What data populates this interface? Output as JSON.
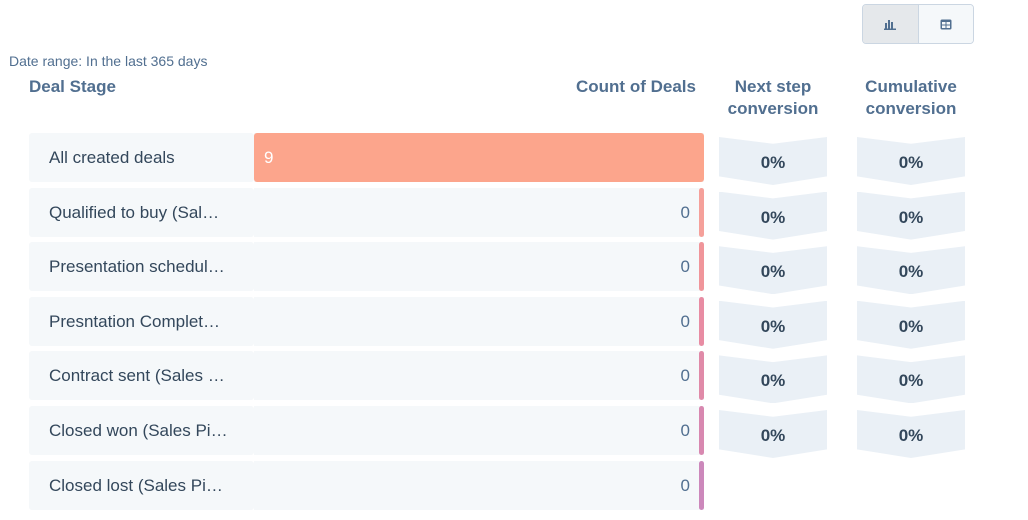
{
  "view_toggle": {
    "chart_icon": "bar-chart-icon",
    "table_icon": "table-icon",
    "active": "chart"
  },
  "date_range": "Date range: In the last 365 days",
  "headers": {
    "stage": "Deal Stage",
    "count": "Count of Deals",
    "next": "Next step conversion",
    "next_l1": "Next step",
    "next_l2": "conversion",
    "cum_l1": "Cumulative",
    "cum_l2": "conversion"
  },
  "rows": [
    {
      "label": "All created deals",
      "count": "9",
      "value": 9,
      "color": "#fca58c",
      "next": "0%",
      "cum": "0%"
    },
    {
      "label": "Qualified to buy (Sal…",
      "count": "0",
      "value": 0,
      "color": "#f5a09a",
      "next": "0%",
      "cum": "0%"
    },
    {
      "label": "Presentation schedul…",
      "count": "0",
      "value": 0,
      "color": "#f0959a",
      "next": "0%",
      "cum": "0%"
    },
    {
      "label": "Presntation Complet…",
      "count": "0",
      "value": 0,
      "color": "#e88ca3",
      "next": "0%",
      "cum": "0%"
    },
    {
      "label": "Contract sent (Sales …",
      "count": "0",
      "value": 0,
      "color": "#e08aa8",
      "next": "0%",
      "cum": "0%"
    },
    {
      "label": "Closed won (Sales Pi…",
      "count": "0",
      "value": 0,
      "color": "#d888b0",
      "next": "0%",
      "cum": "0%"
    },
    {
      "label": "Closed lost (Sales Pi…",
      "count": "0",
      "value": 0,
      "color": "#cc88bb"
    }
  ]
}
